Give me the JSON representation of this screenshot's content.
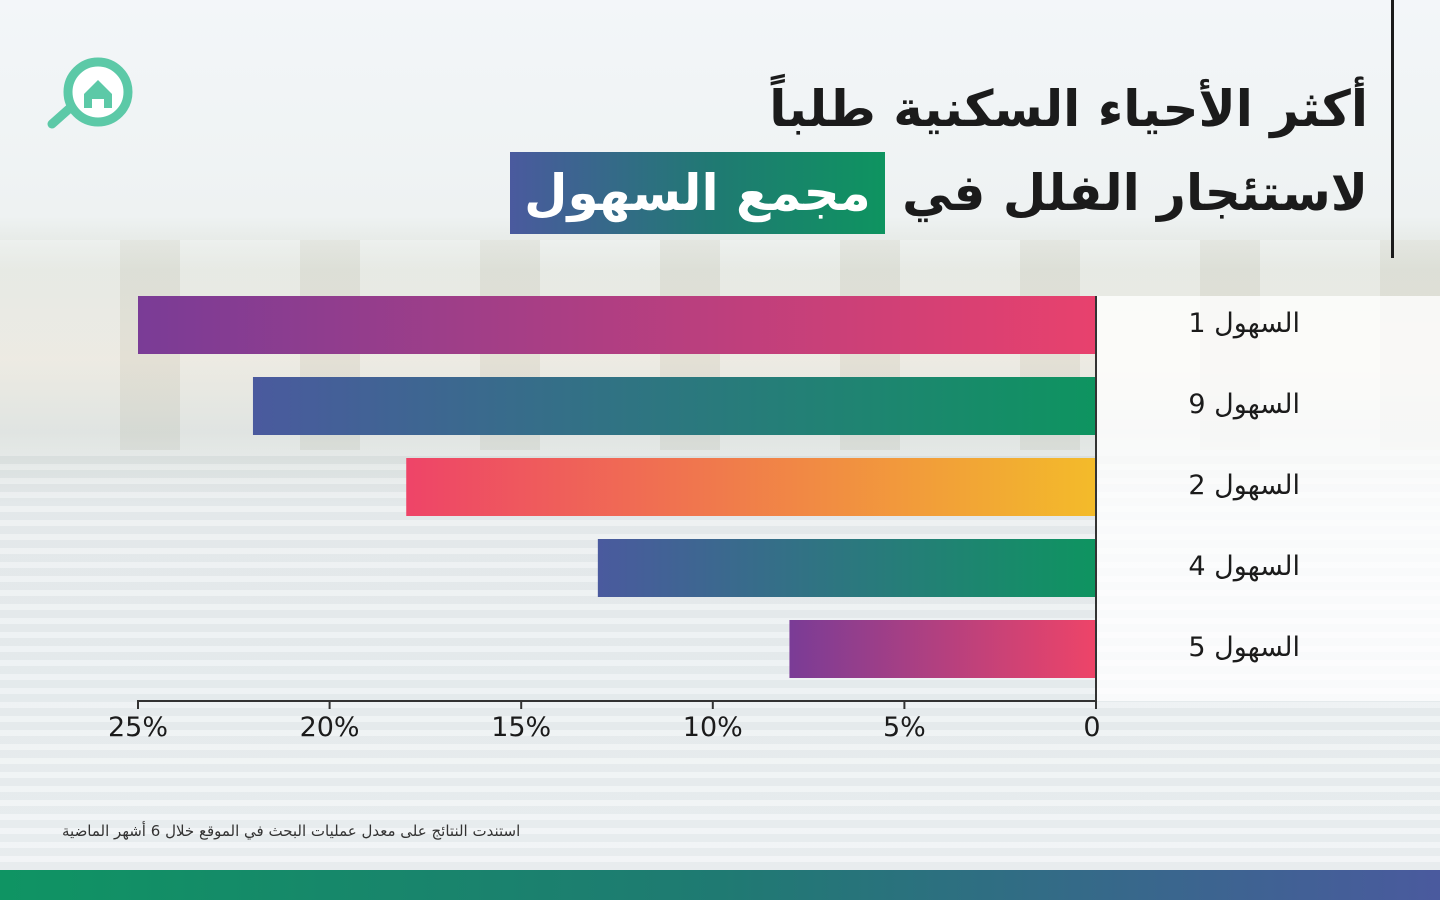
{
  "title_line1": "أكثر الأحياء السكنية طلباً",
  "title_line2_prefix": "لاستئجار الفلل في",
  "title_highlight": "مجمع السهول",
  "footnote": "استندت النتائج على معدل عمليات البحث في الموقع خلال 6 أشهر الماضية",
  "logo_icon": "house-search-icon",
  "colors": {
    "brand_green": "#5cc9a7",
    "accent_blue": "#4a5a9e",
    "accent_green": "#0e9460"
  },
  "chart_data": {
    "type": "bar",
    "orientation": "horizontal",
    "direction": "right-to-left",
    "categories": [
      "السهول 1",
      "السهول 9",
      "السهول 2",
      "السهول 4",
      "السهول 5"
    ],
    "values": [
      25,
      22,
      18,
      13,
      8
    ],
    "xlim": [
      0,
      25
    ],
    "xticks": [
      "0",
      "5%",
      "10%",
      "15%",
      "20%",
      "25%"
    ],
    "bar_gradients": [
      [
        "#e8416d",
        "#7a3c96"
      ],
      [
        "#0e9460",
        "#4a5a9e"
      ],
      [
        "#f3bb2a",
        "#ee4468"
      ],
      [
        "#0e9460",
        "#4a5a9e"
      ],
      [
        "#ee4468",
        "#7a3c96"
      ]
    ]
  }
}
